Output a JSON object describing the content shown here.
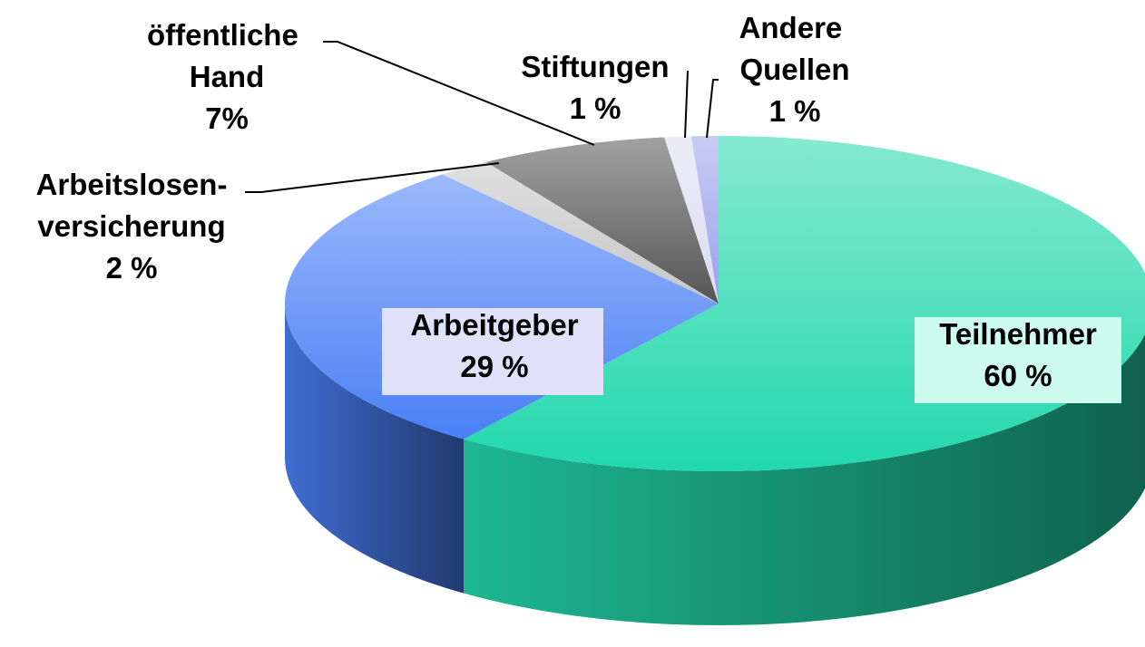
{
  "chart_data": {
    "type": "pie",
    "categories": [
      "Teilnehmer",
      "Arbeitgeber",
      "Arbeitslosen-versicherung",
      "öffentliche Hand",
      "Stiftungen",
      "Andere Quellen"
    ],
    "values": [
      60,
      29,
      2,
      7,
      1,
      1
    ],
    "value_labels": [
      "60 %",
      "29 %",
      "2 %",
      "7%",
      "1 %",
      "1 %"
    ],
    "colors": [
      "#22d8ac",
      "#4a80f6",
      "#c6c6c6",
      "#555555",
      "#dcdcf2",
      "#9aa2ea"
    ]
  }
}
